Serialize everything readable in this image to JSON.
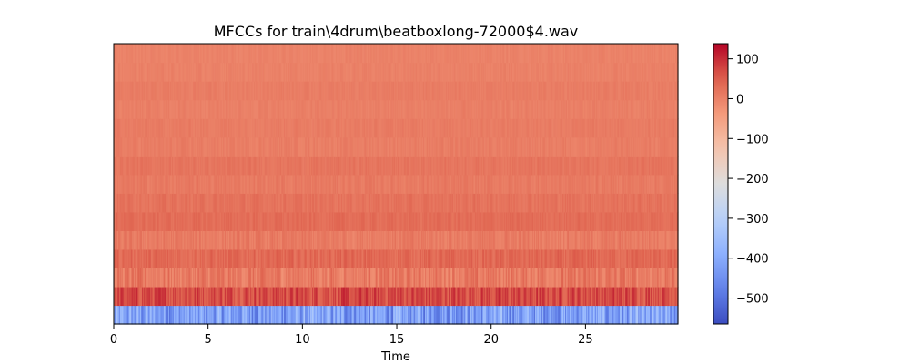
{
  "chart_data": {
    "type": "heatmap",
    "title": "MFCCs for train\\4drum\\beatboxlong-72000$4.wav",
    "xlabel": "Time",
    "ylabel": "",
    "xlim": [
      0,
      29.9
    ],
    "x_ticks": [
      0,
      5,
      10,
      15,
      20,
      25
    ],
    "n_coefficients": 15,
    "y_ticks": [],
    "colormap": "coolwarm",
    "colorbar": {
      "vmin": -565,
      "vmax": 138,
      "ticks": [
        100,
        0,
        -100,
        -200,
        -300,
        -400,
        -500
      ],
      "tick_labels": [
        "100",
        "0",
        "−100",
        "−200",
        "−300",
        "−400",
        "−500"
      ]
    },
    "rows": [
      {
        "coefficient": 0,
        "mean": -420,
        "spread": 110
      },
      {
        "coefficient": 1,
        "mean": 70,
        "spread": 45
      },
      {
        "coefficient": 2,
        "mean": 10,
        "spread": 40
      },
      {
        "coefficient": 3,
        "mean": 35,
        "spread": 25
      },
      {
        "coefficient": 4,
        "mean": 8,
        "spread": 22
      },
      {
        "coefficient": 5,
        "mean": 30,
        "spread": 15
      },
      {
        "coefficient": 6,
        "mean": 22,
        "spread": 15
      },
      {
        "coefficient": 7,
        "mean": 10,
        "spread": 14
      },
      {
        "coefficient": 8,
        "mean": 18,
        "spread": 12
      },
      {
        "coefficient": 9,
        "mean": 5,
        "spread": 12
      },
      {
        "coefficient": 10,
        "mean": 8,
        "spread": 10
      },
      {
        "coefficient": 11,
        "mean": 2,
        "spread": 10
      },
      {
        "coefficient": 12,
        "mean": 6,
        "spread": 9
      },
      {
        "coefficient": 13,
        "mean": 0,
        "spread": 9
      },
      {
        "coefficient": 14,
        "mean": -2,
        "spread": 8
      }
    ]
  }
}
